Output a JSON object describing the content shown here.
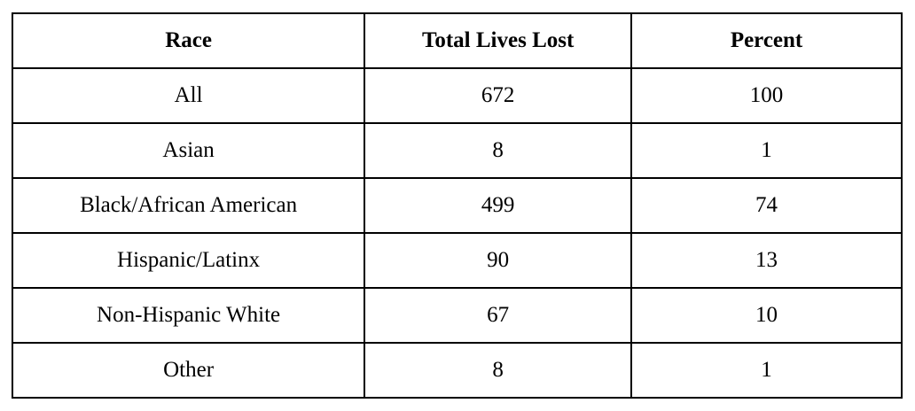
{
  "chart_data": {
    "type": "table",
    "title": "",
    "columns": [
      "Race",
      "Total Lives Lost",
      "Percent"
    ],
    "rows": [
      {
        "race": "All",
        "total_lives_lost": 672,
        "percent": 100
      },
      {
        "race": "Asian",
        "total_lives_lost": 8,
        "percent": 1
      },
      {
        "race": "Black/African American",
        "total_lives_lost": 499,
        "percent": 74
      },
      {
        "race": "Hispanic/Latinx",
        "total_lives_lost": 90,
        "percent": 13
      },
      {
        "race": "Non-Hispanic White",
        "total_lives_lost": 67,
        "percent": 10
      },
      {
        "race": "Other",
        "total_lives_lost": 8,
        "percent": 1
      }
    ],
    "layout": {
      "border_color": "#000000",
      "background_color": "#ffffff",
      "text_color": "#000000",
      "header_bold": true,
      "cell_alignment": "center"
    }
  }
}
